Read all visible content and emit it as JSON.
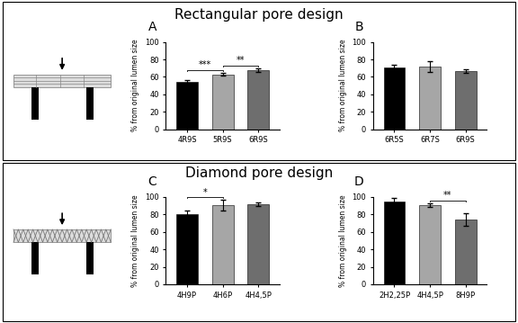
{
  "sections": [
    "Rectangular pore design",
    "Diamond pore design"
  ],
  "chart_data": [
    {
      "type": "bar",
      "title": "A",
      "ylabel": "% from original lumen size",
      "categories": [
        "4R9S",
        "5R9S",
        "6R9S"
      ],
      "values": [
        54,
        63,
        68
      ],
      "errors": [
        2,
        2,
        2
      ],
      "colors": [
        "#000000",
        "#a6a6a6",
        "#6e6e6e"
      ],
      "ylim": [
        0,
        100
      ],
      "yticks": [
        0,
        20,
        40,
        60,
        80,
        100
      ],
      "annotations": [
        {
          "from": "4R9S",
          "to": "5R9S",
          "label": "***"
        },
        {
          "from": "5R9S",
          "to": "6R9S",
          "label": "**"
        }
      ]
    },
    {
      "type": "bar",
      "title": "B",
      "ylabel": "% from original lumen size",
      "categories": [
        "6R5S",
        "6R7S",
        "6R9S"
      ],
      "values": [
        71,
        72,
        67
      ],
      "errors": [
        3,
        6,
        2
      ],
      "colors": [
        "#000000",
        "#a6a6a6",
        "#6e6e6e"
      ],
      "ylim": [
        0,
        100
      ],
      "yticks": [
        0,
        20,
        40,
        60,
        80,
        100
      ],
      "annotations": []
    },
    {
      "type": "bar",
      "title": "C",
      "ylabel": "% from original lumen size",
      "categories": [
        "4H9P",
        "4H6P",
        "4H4,5P"
      ],
      "values": [
        80,
        91,
        92
      ],
      "errors": [
        4,
        6,
        2
      ],
      "colors": [
        "#000000",
        "#a6a6a6",
        "#6e6e6e"
      ],
      "ylim": [
        0,
        100
      ],
      "yticks": [
        0,
        20,
        40,
        60,
        80,
        100
      ],
      "annotations": [
        {
          "from": "4H9P",
          "to": "4H6P",
          "label": "*"
        }
      ]
    },
    {
      "type": "bar",
      "title": "D",
      "ylabel": "% from original lumen size",
      "categories": [
        "2H2,25P",
        "4H4,5P",
        "8H9P"
      ],
      "values": [
        95,
        91,
        74
      ],
      "errors": [
        4,
        2,
        7
      ],
      "colors": [
        "#000000",
        "#a6a6a6",
        "#6e6e6e"
      ],
      "ylim": [
        0,
        100
      ],
      "yticks": [
        0,
        20,
        40,
        60,
        80,
        100
      ],
      "annotations": [
        {
          "from": "4H4,5P",
          "to": "8H9P",
          "label": "**"
        }
      ]
    }
  ]
}
